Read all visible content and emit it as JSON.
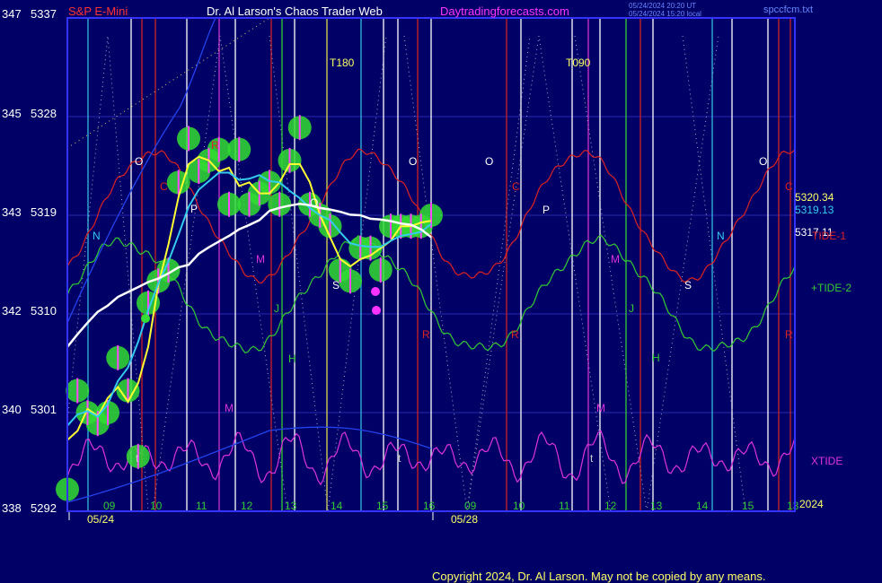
{
  "header": {
    "instrument": "S&P E-Mini",
    "title": "Dr. Al Larson's Chaos Trader Web",
    "site": "Daytradingforecasts.com",
    "stamp_ut": "05/24/2024 20:20 UT",
    "stamp_local": "05/24/2024 15:20 local",
    "file": "spccfcm.txt"
  },
  "copyright": "Copyright 2024, Dr. Al Larson. May not be copied by any means.",
  "colors": {
    "background": "#000066",
    "price_bars": "#ff44ff",
    "bar_halo": "#33dd33",
    "fast_avg": "#ffff33",
    "mid_avg": "#33ccee",
    "slow_avg": "#ffffff",
    "tide1": "#dd2222",
    "tide2": "#33cc33",
    "xtide": "#dd33dd",
    "red_lines": "#cc2222",
    "cyan_lines": "#33bbdd",
    "green_lines": "#33cc33",
    "magenta_lines": "#cc33cc",
    "yellow_lines": "#dddd55"
  },
  "chart_data": {
    "type": "line",
    "y_axis": {
      "left_labels": [
        "347",
        "345",
        "343",
        "342",
        "340",
        "338"
      ],
      "price_labels": [
        "5337",
        "5328",
        "5319",
        "5310",
        "5301",
        "5292"
      ],
      "ylim": [
        5292,
        5337
      ]
    },
    "x_axis": {
      "hour_labels": [
        "09",
        "10",
        "11",
        "12",
        "13",
        "14",
        "15",
        "16",
        "09",
        "10",
        "11",
        "12",
        "13",
        "14",
        "15",
        "13"
      ],
      "date_labels": [
        "05/24",
        "05/28"
      ],
      "year_label": "2024"
    },
    "price": {
      "x": [
        0,
        0.2,
        0.4,
        0.6,
        0.8,
        1,
        1.2,
        1.4,
        1.6,
        1.8,
        2,
        2.2,
        2.4,
        2.6,
        2.8,
        3,
        3.2,
        3.4,
        3.6,
        3.8,
        4,
        4.2,
        4.4,
        4.6,
        4.8,
        5,
        5.2,
        5.4,
        5.6,
        5.8,
        6,
        6.2,
        6.4,
        6.6,
        6.8,
        7,
        7.2
      ],
      "close": [
        5294,
        5303,
        5301,
        5300,
        5301,
        5306,
        5303,
        5297,
        5311,
        5313,
        5314,
        5322,
        5326,
        5323,
        5324,
        5325,
        5320,
        5325,
        5320,
        5321,
        5322,
        5320,
        5324,
        5327,
        5320,
        5319,
        5318,
        5314,
        5313,
        5316,
        5316,
        5314,
        5318,
        5318,
        5318,
        5318,
        5319
      ]
    },
    "price_callouts": [
      {
        "label": "5320.34",
        "color": "#ffff66"
      },
      {
        "label": "5319.13",
        "color": "#33ccee"
      },
      {
        "label": "5317.11",
        "color": "#ffffff"
      }
    ],
    "series": [
      {
        "name": "TIDE-1",
        "color": "#dd2222"
      },
      {
        "name": "+TIDE-2",
        "color": "#33cc33"
      },
      {
        "name": "XTIDE",
        "color": "#dd33dd"
      }
    ],
    "vertical_labels": [
      "T180",
      "T090"
    ],
    "letter_markers": [
      "O",
      "C",
      "O",
      "O",
      "O",
      "C",
      "O",
      "P",
      "P",
      "N",
      "N",
      "M",
      "M",
      "J",
      "J",
      "H",
      "H",
      "S",
      "S",
      "R",
      "R",
      "R",
      "M",
      "M",
      "C",
      "R",
      "t",
      "t",
      "t"
    ],
    "grid": true
  }
}
